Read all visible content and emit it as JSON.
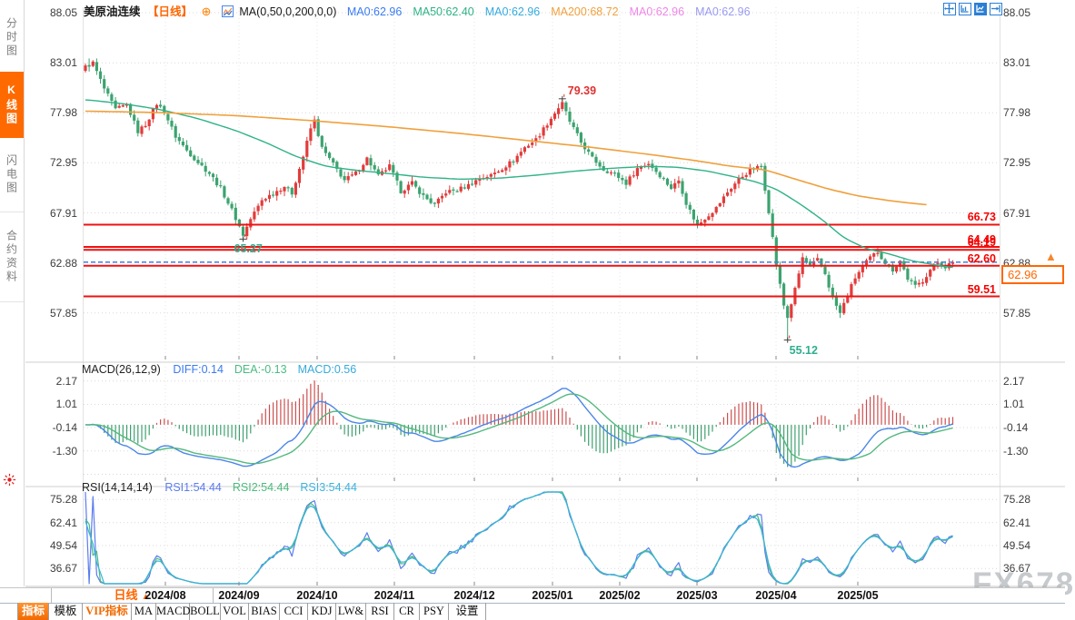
{
  "window": {
    "watermark": "FX678"
  },
  "sidebar": {
    "items": [
      {
        "label": "分时图",
        "name": "sidebar-item-timeshare",
        "active": false
      },
      {
        "label": "K线图",
        "name": "sidebar-item-kline",
        "active": true
      },
      {
        "label": "闪电图",
        "name": "sidebar-item-flash",
        "active": false
      },
      {
        "label": "合约资料",
        "name": "sidebar-item-contract-info",
        "active": false
      }
    ]
  },
  "header": {
    "symbol": "美原油连续",
    "period": "【日线】",
    "add_icon": "⊕",
    "ma_settings": "MA(0,50,0,200,0,0)",
    "ma_values": [
      {
        "label": "MA0:62.96",
        "color": "#3a7bf0"
      },
      {
        "label": "MA50:62.40",
        "color": "#2fb287"
      },
      {
        "label": "MA0:62.96",
        "color": "#35aadc"
      },
      {
        "label": "MA200:68.72",
        "color": "#f0a03c"
      },
      {
        "label": "MA0:62.96",
        "color": "#ef86e8"
      },
      {
        "label": "MA0:62.96",
        "color": "#9a9af2"
      }
    ]
  },
  "toolbar_icons": [
    {
      "name": "pan-icon",
      "active": false
    },
    {
      "name": "fit-axis-icon",
      "active": false
    },
    {
      "name": "chart-panel-icon",
      "active": true
    },
    {
      "name": "export-icon",
      "active": false
    }
  ],
  "price_panel": {
    "y_axis": [
      "88.05",
      "83.01",
      "77.98",
      "72.95",
      "67.91",
      "62.88",
      "57.85"
    ],
    "levels": [
      {
        "label": "66.73"
      },
      {
        "label": "64.49"
      },
      {
        "label": "64.19"
      },
      {
        "label": "62.60"
      },
      {
        "label": "59.51"
      }
    ],
    "current_price": {
      "label": "62.96",
      "arrow": "▲"
    },
    "annotations": [
      {
        "label": "79.39",
        "color": "#e03030"
      },
      {
        "label": "65.27",
        "color": "#2fae8f"
      },
      {
        "label": "55.12",
        "color": "#2fae8f"
      }
    ]
  },
  "macd_panel": {
    "title": "MACD(26,12,9)",
    "values": [
      {
        "label": "DIFF:0.14",
        "color": "#3a7bf0"
      },
      {
        "label": "DEA:-0.13",
        "color": "#49bb82"
      },
      {
        "label": "MACD:0.56",
        "color": "#35aadc"
      }
    ],
    "y_axis": [
      "2.17",
      "1.01",
      "-0.14",
      "-1.30"
    ]
  },
  "rsi_panel": {
    "title": "RSI(14,14,14)",
    "values": [
      {
        "label": "RSI1:54.44",
        "color": "#5b7cf0"
      },
      {
        "label": "RSI2:54.44",
        "color": "#4cbb7c"
      },
      {
        "label": "RSI3:54.44",
        "color": "#3cb3dc"
      }
    ],
    "y_axis": [
      "75.28",
      "62.41",
      "49.54",
      "36.67"
    ]
  },
  "x_axis": {
    "period_label": "日线",
    "period_arrow": "▲",
    "dates": [
      "2024/08",
      "2024/09",
      "2024/10",
      "2024/11",
      "2024/12",
      "2025/01",
      "2025/02",
      "2025/03",
      "2025/04",
      "2025/05"
    ]
  },
  "tabs": [
    {
      "label": "指标",
      "name": "tab-indicator",
      "active": true,
      "vip": false
    },
    {
      "label": "模板",
      "name": "tab-template",
      "active": false,
      "vip": false
    },
    {
      "label": "VIP指标",
      "name": "tab-vip-indicator",
      "active": false,
      "vip": true
    },
    {
      "label": "MA",
      "name": "tab-ma",
      "active": false,
      "vip": false
    },
    {
      "label": "MACD",
      "name": "tab-macd",
      "active": false,
      "vip": false
    },
    {
      "label": "BOLL",
      "name": "tab-boll",
      "active": false,
      "vip": false
    },
    {
      "label": "VOL",
      "name": "tab-vol",
      "active": false,
      "vip": false
    },
    {
      "label": "BIAS",
      "name": "tab-bias",
      "active": false,
      "vip": false
    },
    {
      "label": "CCI",
      "name": "tab-cci",
      "active": false,
      "vip": false
    },
    {
      "label": "KDJ",
      "name": "tab-kdj",
      "active": false,
      "vip": false
    },
    {
      "label": "LW&",
      "name": "tab-lwr",
      "active": false,
      "vip": false
    },
    {
      "label": "RSI",
      "name": "tab-rsi",
      "active": false,
      "vip": false
    },
    {
      "label": "CR",
      "name": "tab-cr",
      "active": false,
      "vip": false
    },
    {
      "label": "PSY",
      "name": "tab-psy",
      "active": false,
      "vip": false
    },
    {
      "label": "设置",
      "name": "tab-settings",
      "active": false,
      "vip": false
    }
  ],
  "colors": {
    "up": "#e23b3b",
    "down": "#3ca36f",
    "accent": "#ff6a00",
    "level_line": "#ee1111",
    "current_line": "#4a7de0",
    "ma50": "#2fb287",
    "ma200": "#f0a03c",
    "diff": "#4a86e8",
    "dea": "#53b87e",
    "hist_pos": "#cc4f4f",
    "hist_neg": "#3fa070",
    "rsi1": "#5b7cf0",
    "rsi2": "#4cbb7c",
    "rsi3": "#3cb3dc",
    "grid": "#d9d9d9",
    "vgrid": "#e6e6e6",
    "sep": "#cfcfcf"
  },
  "chart_data": {
    "type": "candlestick",
    "symbol": "美原油连续",
    "period": "日线",
    "y_axis_prices": [
      88.05,
      83.01,
      77.98,
      72.95,
      67.91,
      62.88,
      57.85
    ],
    "last_price": 62.96,
    "high_point": {
      "price": 79.39,
      "near_date": "2025/01"
    },
    "low_points": [
      {
        "price": 65.27,
        "near_date": "2024/09"
      },
      {
        "price": 55.12,
        "near_date": "2025/04"
      }
    ],
    "horizontal_levels": [
      66.73,
      64.49,
      64.19,
      62.6,
      59.51
    ],
    "moving_averages": {
      "MA50": 62.4,
      "MA200": 68.72
    },
    "macd": {
      "params": [
        26,
        12,
        9
      ],
      "diff": 0.14,
      "dea": -0.13,
      "macd": 0.56,
      "y_axis": [
        2.17,
        1.01,
        -0.14,
        -1.3
      ]
    },
    "rsi": {
      "params": [
        14,
        14,
        14
      ],
      "rsi1": 54.44,
      "rsi2": 54.44,
      "rsi3": 54.44,
      "y_axis": [
        75.28,
        62.41,
        49.54,
        36.67
      ]
    },
    "month_ticks": [
      "2024/08",
      "2024/09",
      "2024/10",
      "2024/11",
      "2024/12",
      "2025/01",
      "2025/02",
      "2025/03",
      "2025/04",
      "2025/05"
    ],
    "close_keyframes": [
      [
        0,
        82.6
      ],
      [
        2,
        83.0
      ],
      [
        5,
        80.4
      ],
      [
        8,
        78.3
      ],
      [
        11,
        78.8
      ],
      [
        14,
        76.1
      ],
      [
        16,
        76.8
      ],
      [
        19,
        78.9
      ],
      [
        21,
        78.1
      ],
      [
        24,
        75.6
      ],
      [
        27,
        74.2
      ],
      [
        30,
        73.0
      ],
      [
        33,
        71.9
      ],
      [
        36,
        70.4
      ],
      [
        39,
        68.2
      ],
      [
        42,
        65.7
      ],
      [
        44,
        67.3
      ],
      [
        47,
        69.2
      ],
      [
        50,
        69.9
      ],
      [
        53,
        70.6
      ],
      [
        55,
        69.9
      ],
      [
        58,
        73.6
      ],
      [
        60,
        76.4
      ],
      [
        61,
        77.2
      ],
      [
        63,
        74.4
      ],
      [
        66,
        72.8
      ],
      [
        69,
        71.2
      ],
      [
        72,
        71.9
      ],
      [
        75,
        73.4
      ],
      [
        78,
        71.6
      ],
      [
        81,
        72.6
      ],
      [
        84,
        70.1
      ],
      [
        87,
        70.9
      ],
      [
        90,
        69.6
      ],
      [
        93,
        68.7
      ],
      [
        96,
        70.0
      ],
      [
        99,
        70.2
      ],
      [
        102,
        70.7
      ],
      [
        105,
        71.4
      ],
      [
        108,
        71.7
      ],
      [
        111,
        72.4
      ],
      [
        114,
        73.2
      ],
      [
        117,
        74.5
      ],
      [
        120,
        75.3
      ],
      [
        123,
        76.9
      ],
      [
        126,
        78.5
      ],
      [
        127,
        78.9
      ],
      [
        129,
        77.1
      ],
      [
        132,
        75.0
      ],
      [
        135,
        73.4
      ],
      [
        138,
        72.3
      ],
      [
        141,
        71.8
      ],
      [
        144,
        70.9
      ],
      [
        147,
        72.4
      ],
      [
        150,
        72.9
      ],
      [
        153,
        71.7
      ],
      [
        156,
        70.4
      ],
      [
        158,
        71.2
      ],
      [
        160,
        68.9
      ],
      [
        163,
        66.6
      ],
      [
        165,
        67.4
      ],
      [
        168,
        68.4
      ],
      [
        171,
        70.0
      ],
      [
        174,
        71.3
      ],
      [
        177,
        72.2
      ],
      [
        180,
        72.6
      ],
      [
        182,
        68.1
      ],
      [
        184,
        62.7
      ],
      [
        186,
        58.6
      ],
      [
        187,
        57.4
      ],
      [
        189,
        60.2
      ],
      [
        191,
        63.4
      ],
      [
        193,
        62.5
      ],
      [
        195,
        63.2
      ],
      [
        197,
        61.8
      ],
      [
        199,
        59.3
      ],
      [
        201,
        57.8
      ],
      [
        203,
        59.7
      ],
      [
        205,
        61.4
      ],
      [
        207,
        62.5
      ],
      [
        209,
        63.4
      ],
      [
        211,
        64.0
      ],
      [
        213,
        62.9
      ],
      [
        215,
        62.2
      ],
      [
        217,
        63.1
      ],
      [
        219,
        61.3
      ],
      [
        221,
        60.5
      ],
      [
        223,
        61.1
      ],
      [
        225,
        62.2
      ],
      [
        227,
        62.9
      ],
      [
        229,
        62.5
      ],
      [
        231,
        62.96
      ]
    ],
    "ma50_keyframes": [
      [
        0,
        79.3
      ],
      [
        10,
        78.9
      ],
      [
        20,
        78.3
      ],
      [
        30,
        77.4
      ],
      [
        40,
        76.2
      ],
      [
        48,
        75.0
      ],
      [
        56,
        73.6
      ],
      [
        64,
        72.6
      ],
      [
        72,
        72.2
      ],
      [
        80,
        71.9
      ],
      [
        90,
        71.5
      ],
      [
        100,
        71.3
      ],
      [
        110,
        71.4
      ],
      [
        120,
        71.7
      ],
      [
        130,
        72.1
      ],
      [
        140,
        72.4
      ],
      [
        150,
        72.6
      ],
      [
        158,
        72.5
      ],
      [
        166,
        72.1
      ],
      [
        172,
        71.6
      ],
      [
        178,
        71.1
      ],
      [
        184,
        70.3
      ],
      [
        190,
        68.9
      ],
      [
        196,
        67.3
      ],
      [
        202,
        65.4
      ],
      [
        208,
        64.3
      ],
      [
        214,
        63.8
      ],
      [
        220,
        63.1
      ],
      [
        226,
        62.7
      ],
      [
        231,
        62.4
      ]
    ],
    "ma200_keyframes": [
      [
        0,
        78.15
      ],
      [
        20,
        78.0
      ],
      [
        40,
        77.7
      ],
      [
        60,
        77.2
      ],
      [
        80,
        76.6
      ],
      [
        100,
        75.9
      ],
      [
        120,
        75.1
      ],
      [
        135,
        74.5
      ],
      [
        150,
        73.8
      ],
      [
        162,
        73.2
      ],
      [
        172,
        72.6
      ],
      [
        181,
        72.25
      ],
      [
        190,
        71.2
      ],
      [
        198,
        70.3
      ],
      [
        206,
        69.6
      ],
      [
        215,
        69.1
      ],
      [
        224,
        68.72
      ]
    ]
  }
}
